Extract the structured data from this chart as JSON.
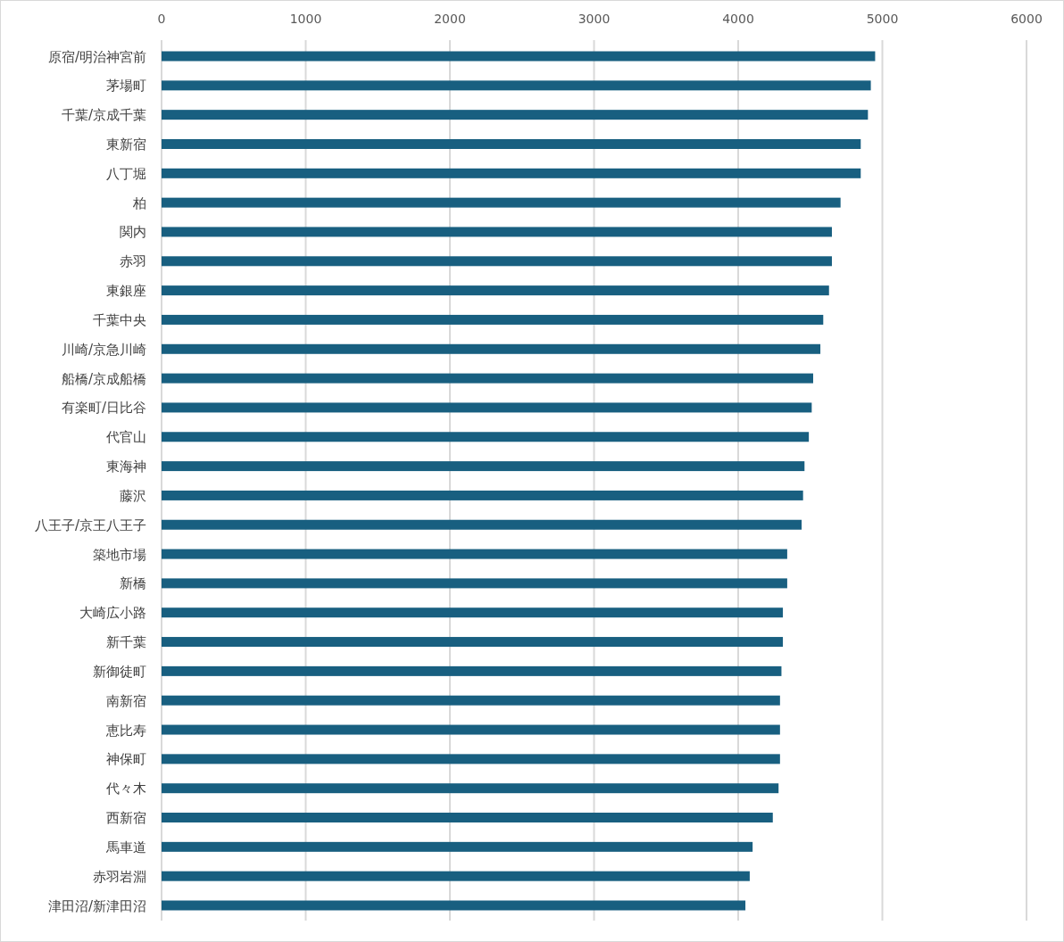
{
  "chart_data": {
    "type": "bar",
    "orientation": "horizontal",
    "categories": [
      "原宿/明治神宮前",
      "茅場町",
      "千葉/京成千葉",
      "東新宿",
      "八丁堀",
      "柏",
      "関内",
      "赤羽",
      "東銀座",
      "千葉中央",
      "川崎/京急川崎",
      "船橋/京成船橋",
      "有楽町/日比谷",
      "代官山",
      "東海神",
      "藤沢",
      "八王子/京王八王子",
      "築地市場",
      "新橋",
      "大崎広小路",
      "新千葉",
      "新御徒町",
      "南新宿",
      "恵比寿",
      "神保町",
      "代々木",
      "西新宿",
      "馬車道",
      "赤羽岩淵",
      "津田沼/新津田沼"
    ],
    "values": [
      4950,
      4920,
      4900,
      4850,
      4850,
      4710,
      4650,
      4650,
      4630,
      4590,
      4570,
      4520,
      4510,
      4490,
      4460,
      4450,
      4440,
      4340,
      4340,
      4310,
      4310,
      4300,
      4290,
      4290,
      4290,
      4280,
      4240,
      4100,
      4080,
      4050
    ],
    "color": "#185f80",
    "xlim": [
      0,
      6000
    ],
    "xticks": [
      0,
      1000,
      2000,
      3000,
      4000,
      5000,
      6000
    ],
    "grid": "x"
  }
}
